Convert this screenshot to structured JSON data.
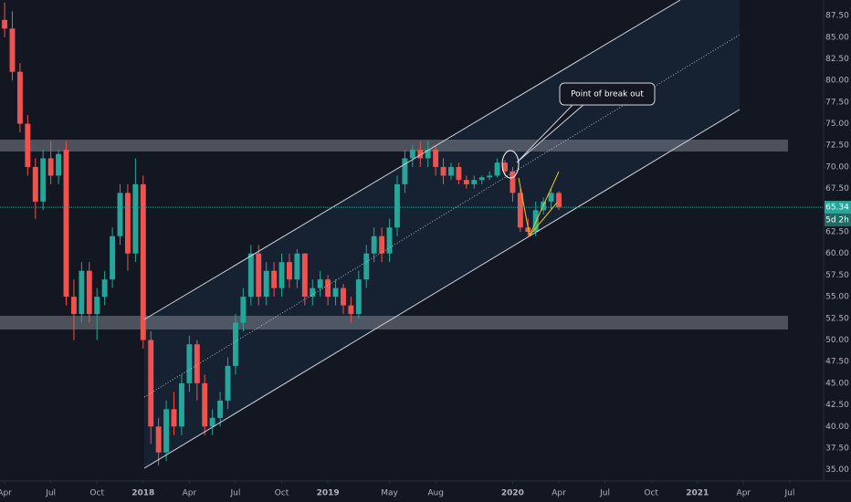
{
  "chart_data": {
    "type": "candlestick",
    "x": [
      3,
      3.5,
      4,
      4.5,
      5,
      5.5,
      6,
      6.5,
      7,
      7.5,
      8,
      8.5,
      9,
      9.5,
      10,
      10.5,
      11,
      11.5,
      12,
      12.5,
      13,
      13.5,
      14,
      14.5,
      15,
      15.5,
      16,
      16.5,
      17,
      17.5,
      18,
      18.5,
      19,
      19.5,
      20,
      20.5,
      21,
      21.5,
      22,
      22.5,
      23,
      23.5,
      24,
      24.5,
      25,
      25.5,
      26,
      26.5,
      27,
      27.5,
      28,
      28.5,
      29,
      29.5,
      30,
      30.5,
      31,
      31.5,
      32,
      32.5,
      33,
      33.5,
      34,
      34.5,
      35,
      35.5,
      36,
      36.5,
      37,
      37.5,
      38,
      38.5,
      39
    ],
    "open": [
      87,
      86,
      81,
      75,
      70,
      66,
      71,
      69,
      72,
      55,
      53,
      58,
      53,
      55,
      57,
      62,
      67,
      60,
      68,
      50,
      40,
      37,
      42,
      40,
      45,
      49.5,
      45,
      40,
      41,
      43,
      47,
      52,
      55,
      60,
      55,
      58,
      56,
      59,
      57,
      60,
      55,
      56,
      57,
      55,
      56,
      54,
      53,
      57,
      60,
      62,
      60,
      63,
      68,
      71,
      72,
      71,
      72,
      70,
      69,
      70,
      68.5,
      68,
      68.5,
      68.8,
      69,
      70.5,
      69.5,
      67,
      63,
      62.5,
      65,
      66,
      67
    ],
    "high": [
      89,
      88,
      82,
      76,
      71,
      72,
      73,
      72,
      73,
      57,
      59,
      59,
      56,
      58,
      63,
      68,
      68,
      71,
      69,
      51,
      41,
      43,
      44,
      46,
      50.5,
      50,
      46,
      42,
      44,
      48,
      53,
      56,
      61,
      61,
      59,
      59,
      60,
      60,
      60.5,
      60,
      57,
      58,
      57.5,
      57,
      56.5,
      55,
      58,
      61,
      63,
      63,
      64,
      69,
      72,
      72.5,
      73,
      73,
      72.5,
      71,
      70.5,
      70.5,
      69,
      69,
      69,
      69.5,
      71,
      70.8,
      70,
      67.5,
      64,
      66,
      66.5,
      67.5,
      67.2
    ],
    "low": [
      85,
      80,
      74,
      69,
      64,
      65,
      68,
      68,
      54,
      50,
      52,
      52,
      50,
      54,
      56,
      61,
      58,
      59,
      49,
      38,
      35.5,
      36,
      39,
      39,
      44,
      43,
      39,
      39,
      40,
      42,
      46,
      51,
      54,
      54,
      54,
      55,
      55,
      56,
      56,
      54,
      54,
      55,
      54,
      54,
      53,
      52,
      52.5,
      56,
      59,
      59,
      59,
      62,
      67,
      70,
      70,
      70,
      69,
      68,
      68.5,
      68,
      67.5,
      67.5,
      68,
      68.5,
      68.8,
      69,
      66,
      62.5,
      62,
      62,
      64.5,
      65,
      65
    ],
    "close": [
      86,
      81,
      75,
      70,
      66,
      71,
      69,
      71.5,
      55,
      53,
      58,
      53,
      55,
      57,
      62,
      67,
      60,
      68,
      50,
      40,
      37,
      42,
      40,
      45,
      49.5,
      45,
      40,
      41,
      43,
      47,
      52,
      55,
      60,
      55,
      58,
      56,
      59,
      57,
      60,
      55,
      56,
      57,
      55,
      56,
      54,
      53,
      57,
      60,
      62,
      60,
      63,
      68,
      71,
      72,
      71,
      72,
      70,
      69,
      70,
      68.5,
      68,
      68.5,
      68.8,
      69,
      70.5,
      69.5,
      67,
      63,
      62.5,
      65,
      66,
      67,
      65.34
    ],
    "up_color": "#26a69a",
    "down_color": "#ef5350",
    "last_price": {
      "value": 65.34,
      "label": "65.34"
    },
    "countdown": "5d 2h",
    "annotation": "Point of break out",
    "xlim": [
      2.7,
      56.2
    ],
    "ylim": [
      33.7,
      89.3
    ],
    "grid": false,
    "xticks": [
      {
        "value": 3,
        "label": "Apr"
      },
      {
        "value": 6,
        "label": "Jul"
      },
      {
        "value": 9,
        "label": "Oct"
      },
      {
        "value": 12,
        "label": "2018"
      },
      {
        "value": 15,
        "label": "Apr"
      },
      {
        "value": 18,
        "label": "Jul"
      },
      {
        "value": 21,
        "label": "Oct"
      },
      {
        "value": 24,
        "label": "2019"
      },
      {
        "value": 28,
        "label": "May"
      },
      {
        "value": 31,
        "label": "Aug"
      },
      {
        "value": 36,
        "label": "2020"
      },
      {
        "value": 39,
        "label": "Apr"
      },
      {
        "value": 42,
        "label": "Jul"
      },
      {
        "value": 45,
        "label": "Oct"
      },
      {
        "value": 48,
        "label": "2021"
      },
      {
        "value": 51,
        "label": "Apr"
      },
      {
        "value": 54,
        "label": "Jul"
      }
    ],
    "yticks": [
      {
        "value": 35,
        "label": "35.00"
      },
      {
        "value": 37.5,
        "label": "37.50"
      },
      {
        "value": 40,
        "label": "40.00"
      },
      {
        "value": 42.5,
        "label": "42.50"
      },
      {
        "value": 45,
        "label": "45.00"
      },
      {
        "value": 47.5,
        "label": "47.50"
      },
      {
        "value": 50,
        "label": "50.00"
      },
      {
        "value": 52.5,
        "label": "52.50"
      },
      {
        "value": 55,
        "label": "55.00"
      },
      {
        "value": 57.5,
        "label": "57.50"
      },
      {
        "value": 60,
        "label": "60.00"
      },
      {
        "value": 62.5,
        "label": "62.50"
      },
      {
        "value": 65,
        "label": "65.00"
      },
      {
        "value": 67.5,
        "label": "67.50"
      },
      {
        "value": 70,
        "label": "70.00"
      },
      {
        "value": 72.5,
        "label": "72.50"
      },
      {
        "value": 75,
        "label": "75.00"
      },
      {
        "value": 77.5,
        "label": "77.50"
      },
      {
        "value": 80,
        "label": "80.00"
      },
      {
        "value": 82.5,
        "label": "82.50"
      },
      {
        "value": 85,
        "label": "85.00"
      },
      {
        "value": 87.5,
        "label": "87.50"
      }
    ]
  }
}
